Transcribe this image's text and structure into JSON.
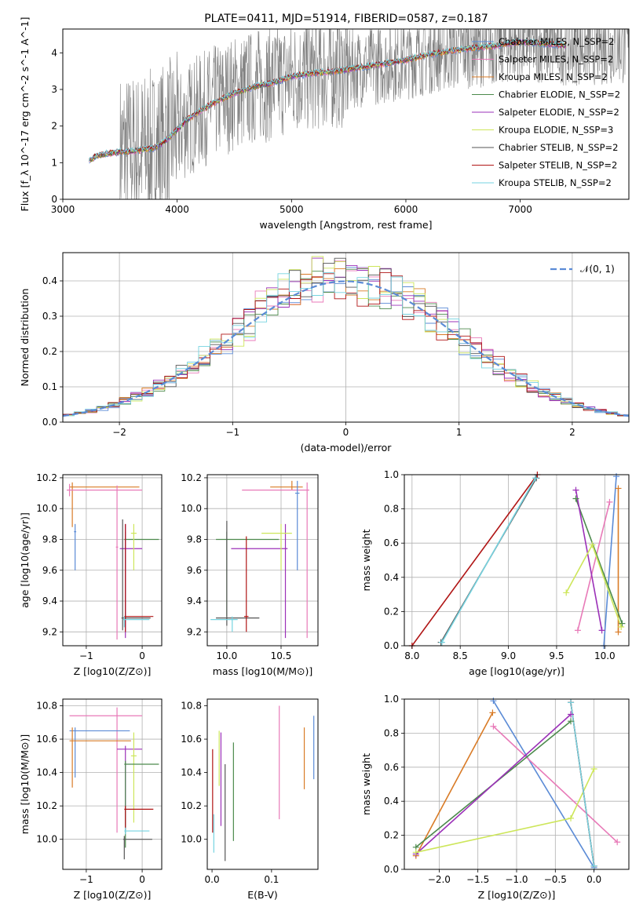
{
  "figure": {
    "title": "PLATE=0411, MJD=51914, FIBERID=0587, z=0.187"
  },
  "colors": {
    "chabrier_miles": "#5b8bd6",
    "salpeter_miles": "#e87ab8",
    "kroupa_miles": "#d97b26",
    "chabrier_elodie": "#4c8a4c",
    "salpeter_elodie": "#9b30b8",
    "kroupa_elodie": "#cde65a",
    "chabrier_stelib": "#555555",
    "salpeter_stelib": "#b01515",
    "kroupa_stelib": "#76d3e0",
    "data_spectrum": "#808080",
    "normal_curve": "#5b8bd6"
  },
  "chart_data": [
    {
      "id": "spectrum",
      "type": "line",
      "xlabel": "wavelength [Angstrom, rest frame]",
      "ylabel": "Flux [f_λ 10^-17 erg cm^-2 s^-1 A^-1]",
      "xlim": [
        3000,
        7950
      ],
      "ylim": [
        0,
        4.65
      ],
      "xticks": [
        "3000",
        "4000",
        "5000",
        "6000",
        "7000"
      ],
      "yticks": [
        "0",
        "1",
        "2",
        "3",
        "4"
      ],
      "grid": false,
      "legend_placement": "top-right",
      "model_range": [
        3230,
        7400
      ],
      "data_range": [
        3500,
        7950
      ],
      "model_points": [
        [
          3230,
          1.05
        ],
        [
          3300,
          1.2
        ],
        [
          3400,
          1.25
        ],
        [
          3500,
          1.3
        ],
        [
          3600,
          1.3
        ],
        [
          3700,
          1.35
        ],
        [
          3800,
          1.4
        ],
        [
          3900,
          1.6
        ],
        [
          4000,
          1.9
        ],
        [
          4100,
          2.2
        ],
        [
          4200,
          2.4
        ],
        [
          4300,
          2.6
        ],
        [
          4400,
          2.75
        ],
        [
          4500,
          2.9
        ],
        [
          4600,
          3.0
        ],
        [
          4700,
          3.1
        ],
        [
          4800,
          3.15
        ],
        [
          4900,
          3.25
        ],
        [
          5000,
          3.35
        ],
        [
          5200,
          3.45
        ],
        [
          5400,
          3.5
        ],
        [
          5600,
          3.6
        ],
        [
          5800,
          3.7
        ],
        [
          6000,
          3.8
        ],
        [
          6200,
          3.95
        ],
        [
          6500,
          4.1
        ],
        [
          6800,
          4.2
        ],
        [
          7000,
          4.3
        ],
        [
          7200,
          4.25
        ],
        [
          7400,
          4.2
        ]
      ],
      "legend": [
        {
          "label": "Chabrier MILES, N_SSP=2",
          "color_key": "chabrier_miles"
        },
        {
          "label": "Salpeter MILES, N_SSP=2",
          "color_key": "salpeter_miles"
        },
        {
          "label": "Kroupa MILES, N_SSP=2",
          "color_key": "kroupa_miles"
        },
        {
          "label": "Chabrier ELODIE, N_SSP=2",
          "color_key": "chabrier_elodie"
        },
        {
          "label": "Salpeter ELODIE, N_SSP=2",
          "color_key": "salpeter_elodie"
        },
        {
          "label": "Kroupa ELODIE, N_SSP=3",
          "color_key": "kroupa_elodie"
        },
        {
          "label": "Chabrier STELIB, N_SSP=2",
          "color_key": "chabrier_stelib"
        },
        {
          "label": "Salpeter STELIB, N_SSP=2",
          "color_key": "salpeter_stelib"
        },
        {
          "label": "Kroupa STELIB, N_SSP=2",
          "color_key": "kroupa_stelib"
        }
      ]
    },
    {
      "id": "residuals",
      "type": "line",
      "xlabel": "(data-model)/error",
      "ylabel": "Normed distribution",
      "xlim": [
        -2.5,
        2.5
      ],
      "ylim": [
        0,
        0.48
      ],
      "xticks": [
        -2,
        -1,
        0,
        1,
        2
      ],
      "xtick_labels": [
        "−2",
        "−1",
        "0",
        "1",
        "2"
      ],
      "yticks": [
        0.0,
        0.1,
        0.2,
        0.3,
        0.4
      ],
      "ytick_labels": [
        "0.0",
        "0.1",
        "0.2",
        "0.3",
        "0.4"
      ],
      "grid": true,
      "legend_placement": "top-right",
      "legend": [
        {
          "label": "𝒩(0, 1)",
          "color_key": "normal_curve",
          "style": "dashed"
        }
      ],
      "bin_width": 0.1
    },
    {
      "id": "age_vs_Z",
      "type": "scatter",
      "xlabel": "Z [log10(Z/Z⊙)]",
      "ylabel": "age  [log10(age/yr)]",
      "xlim": [
        -1.42,
        0.35
      ],
      "ylim": [
        9.11,
        10.22
      ],
      "xticks": [
        -1,
        0
      ],
      "xtick_labels": [
        "−1",
        "0"
      ],
      "yticks": [
        9.2,
        9.4,
        9.6,
        9.8,
        10.0,
        10.2
      ],
      "ytick_labels": [
        "9.2",
        "9.4",
        "9.6",
        "9.8",
        "10.0",
        "10.2"
      ],
      "grid": true,
      "points": [
        {
          "color_key": "kroupa_miles",
          "x": -1.25,
          "y": 10.14,
          "xerr": [
            0.05,
            1.2
          ],
          "yerr": [
            0.26,
            0.03
          ]
        },
        {
          "color_key": "salpeter_miles",
          "x": -1.3,
          "y": 10.12,
          "xerr": [
            0.05,
            1.3
          ],
          "yerr": [
            0.04,
            0.04
          ]
        },
        {
          "color_key": "chabrier_miles",
          "x": -1.2,
          "y": 9.85,
          "xerr": [
            0.02,
            0.02
          ],
          "yerr": [
            0.25,
            0.05
          ]
        },
        {
          "color_key": "salpeter_miles",
          "x": -0.45,
          "y": 9.75,
          "xerr": [
            0.02,
            0.02
          ],
          "yerr": [
            0.6,
            0.4
          ]
        },
        {
          "color_key": "chabrier_elodie",
          "x": -0.3,
          "y": 9.8,
          "xerr": [
            0.02,
            0.6
          ],
          "yerr": [
            0.5,
            0.05
          ]
        },
        {
          "color_key": "salpeter_elodie",
          "x": -0.3,
          "y": 9.74,
          "xerr": [
            0.1,
            0.3
          ],
          "yerr": [
            0.58,
            0.16
          ]
        },
        {
          "color_key": "kroupa_elodie",
          "x": -0.15,
          "y": 9.84,
          "xerr": [
            0.05,
            0.05
          ],
          "yerr": [
            0.24,
            0.06
          ]
        },
        {
          "color_key": "chabrier_stelib",
          "x": -0.35,
          "y": 9.29,
          "xerr": [
            0.02,
            0.5
          ],
          "yerr": [
            0.08,
            0.64
          ]
        },
        {
          "color_key": "salpeter_stelib",
          "x": -0.3,
          "y": 9.3,
          "xerr": [
            0.02,
            0.5
          ],
          "yerr": [
            0.1,
            0.6
          ]
        },
        {
          "color_key": "kroupa_stelib",
          "x": -0.32,
          "y": 9.28,
          "xerr": [
            0.02,
            0.45
          ],
          "yerr": [
            0.05,
            0.02
          ]
        }
      ]
    },
    {
      "id": "age_vs_mass",
      "type": "scatter",
      "xlabel": "mass [log10(M/M⊙)]",
      "ylabel": "",
      "xlim": [
        9.82,
        10.84
      ],
      "ylim": [
        9.11,
        10.22
      ],
      "xticks": [
        10.0,
        10.5
      ],
      "xtick_labels": [
        "10.0",
        "10.5"
      ],
      "yticks": [
        9.2,
        9.4,
        9.6,
        9.8,
        10.0,
        10.2
      ],
      "ytick_labels": [
        "9.2",
        "9.4",
        "9.6",
        "9.8",
        "10.0",
        "10.2"
      ],
      "grid": true,
      "points": [
        {
          "color_key": "kroupa_miles",
          "x": 10.6,
          "y": 10.14,
          "xerr": [
            0.2,
            0.1
          ],
          "yerr": [
            0.02,
            0.04
          ]
        },
        {
          "color_key": "salpeter_miles",
          "x": 10.74,
          "y": 10.12,
          "xerr": [
            0.6,
            0.02
          ],
          "yerr": [
            0.96,
            0.05
          ]
        },
        {
          "color_key": "chabrier_miles",
          "x": 10.65,
          "y": 10.1,
          "xerr": [
            0.02,
            0.02
          ],
          "yerr": [
            0.5,
            0.08
          ]
        },
        {
          "color_key": "chabrier_elodie",
          "x": 10.0,
          "y": 9.8,
          "xerr": [
            0.1,
            0.48
          ],
          "yerr": [
            0.5,
            0.05
          ]
        },
        {
          "color_key": "salpeter_elodie",
          "x": 10.54,
          "y": 9.74,
          "xerr": [
            0.5,
            0.02
          ],
          "yerr": [
            0.58,
            0.16
          ]
        },
        {
          "color_key": "kroupa_elodie",
          "x": 10.5,
          "y": 9.84,
          "xerr": [
            0.18,
            0.1
          ],
          "yerr": [
            0.24,
            0.06
          ]
        },
        {
          "color_key": "chabrier_stelib",
          "x": 10.0,
          "y": 9.29,
          "xerr": [
            0.1,
            0.3
          ],
          "yerr": [
            0.05,
            0.63
          ]
        },
        {
          "color_key": "salpeter_stelib",
          "x": 10.18,
          "y": 9.3,
          "xerr": [
            0.02,
            0.02
          ],
          "yerr": [
            0.1,
            0.52
          ]
        },
        {
          "color_key": "kroupa_stelib",
          "x": 10.05,
          "y": 9.28,
          "xerr": [
            0.2,
            0.05
          ],
          "yerr": [
            0.08,
            0.02
          ]
        }
      ]
    },
    {
      "id": "mass_weight_vs_age",
      "type": "line",
      "xlabel": "age  [log10(age/yr)]",
      "ylabel": "mass weight",
      "xlim": [
        7.92,
        10.25
      ],
      "ylim": [
        0,
        1
      ],
      "xticks": [
        8.0,
        8.5,
        9.0,
        9.5,
        10.0
      ],
      "xtick_labels": [
        "8.0",
        "8.5",
        "9.0",
        "9.5",
        "10.0"
      ],
      "yticks": [
        0,
        0.2,
        0.4,
        0.6,
        0.8,
        1.0
      ],
      "ytick_labels": [
        "0.0",
        "0.2",
        "0.4",
        "0.6",
        "0.8",
        "1.0"
      ],
      "grid": true,
      "series": [
        {
          "color_key": "chabrier_miles",
          "x": [
            9.99,
            10.12
          ],
          "y": [
            0.0,
            0.99
          ]
        },
        {
          "color_key": "salpeter_miles",
          "x": [
            9.72,
            10.05
          ],
          "y": [
            0.09,
            0.84
          ]
        },
        {
          "color_key": "kroupa_miles",
          "x": [
            10.14,
            10.14
          ],
          "y": [
            0.08,
            0.92
          ]
        },
        {
          "color_key": "chabrier_elodie",
          "x": [
            9.7,
            10.18
          ],
          "y": [
            0.86,
            0.13
          ]
        },
        {
          "color_key": "salpeter_elodie",
          "x": [
            9.7,
            9.97
          ],
          "y": [
            0.91,
            0.09
          ]
        },
        {
          "color_key": "kroupa_elodie",
          "x": [
            9.6,
            9.87,
            10.17
          ],
          "y": [
            0.31,
            0.59,
            0.11
          ]
        },
        {
          "color_key": "chabrier_stelib",
          "x": [
            8.3,
            9.29
          ],
          "y": [
            0.02,
            0.98
          ]
        },
        {
          "color_key": "salpeter_stelib",
          "x": [
            8.0,
            9.3
          ],
          "y": [
            0.0,
            1.0
          ]
        },
        {
          "color_key": "kroupa_stelib",
          "x": [
            8.31,
            9.28
          ],
          "y": [
            0.02,
            0.98
          ]
        }
      ]
    },
    {
      "id": "mass_vs_Z",
      "type": "scatter",
      "xlabel": "Z [log10(Z/Z⊙)]",
      "ylabel": "mass [log10(M/M⊙)]",
      "xlim": [
        -1.42,
        0.35
      ],
      "ylim": [
        9.82,
        10.84
      ],
      "xticks": [
        -1,
        0
      ],
      "xtick_labels": [
        "−1",
        "0"
      ],
      "yticks": [
        10.0,
        10.2,
        10.4,
        10.6,
        10.8
      ],
      "ytick_labels": [
        "10.0",
        "10.2",
        "10.4",
        "10.6",
        "10.8"
      ],
      "grid": true,
      "points": [
        {
          "color_key": "salpeter_miles",
          "x": -0.45,
          "y": 10.74,
          "xerr": [
            0.85,
            0.45
          ],
          "yerr": [
            0.7,
            0.05
          ]
        },
        {
          "color_key": "chabrier_miles",
          "x": -1.2,
          "y": 10.65,
          "xerr": [
            0.1,
            0.98
          ],
          "yerr": [
            0.28,
            0.02
          ]
        },
        {
          "color_key": "kroupa_miles",
          "x": -1.25,
          "y": 10.59,
          "xerr": [
            0.05,
            1.05
          ],
          "yerr": [
            0.28,
            0.08
          ]
        },
        {
          "color_key": "salpeter_elodie",
          "x": -0.3,
          "y": 10.54,
          "xerr": [
            0.15,
            0.3
          ],
          "yerr": [
            0.5,
            0.02
          ]
        },
        {
          "color_key": "kroupa_elodie",
          "x": -0.15,
          "y": 10.5,
          "xerr": [
            0.05,
            0.05
          ],
          "yerr": [
            0.4,
            0.14
          ]
        },
        {
          "color_key": "chabrier_elodie",
          "x": -0.3,
          "y": 10.45,
          "xerr": [
            0.02,
            0.6
          ],
          "yerr": [
            0.5,
            0.02
          ]
        },
        {
          "color_key": "salpeter_stelib",
          "x": -0.3,
          "y": 10.18,
          "xerr": [
            0.02,
            0.5
          ],
          "yerr": [
            0.12,
            0.02
          ]
        },
        {
          "color_key": "kroupa_stelib",
          "x": -0.3,
          "y": 10.05,
          "xerr": [
            0.02,
            0.43
          ],
          "yerr": [
            0.02,
            0.02
          ]
        },
        {
          "color_key": "chabrier_stelib",
          "x": -0.32,
          "y": 10.0,
          "xerr": [
            0.02,
            0.5
          ],
          "yerr": [
            0.12,
            0.02
          ]
        }
      ]
    },
    {
      "id": "mass_vs_ebv",
      "type": "scatter",
      "xlabel": "E(B-V)",
      "ylabel": "",
      "xlim": [
        -0.008,
        0.178
      ],
      "ylim": [
        9.82,
        10.84
      ],
      "xticks": [
        0.0,
        0.1
      ],
      "xtick_labels": [
        "0.0",
        "0.1"
      ],
      "yticks": [
        10.0,
        10.2,
        10.4,
        10.6,
        10.8
      ],
      "ytick_labels": [
        "10.0",
        "10.2",
        "10.4",
        "10.6",
        "10.8"
      ],
      "grid": false,
      "bars": [
        {
          "color_key": "salpeter_stelib",
          "x": 0.001,
          "y0": 10.04,
          "y1": 10.54
        },
        {
          "color_key": "kroupa_stelib",
          "x": 0.003,
          "y0": 9.92,
          "y1": 10.15
        },
        {
          "color_key": "kroupa_elodie",
          "x": 0.012,
          "y0": 10.32,
          "y1": 10.65
        },
        {
          "color_key": "salpeter_elodie",
          "x": 0.015,
          "y0": 10.08,
          "y1": 10.64
        },
        {
          "color_key": "chabrier_stelib",
          "x": 0.022,
          "y0": 9.87,
          "y1": 10.45
        },
        {
          "color_key": "chabrier_elodie",
          "x": 0.036,
          "y0": 9.99,
          "y1": 10.58
        },
        {
          "color_key": "salpeter_miles",
          "x": 0.113,
          "y0": 10.12,
          "y1": 10.8
        },
        {
          "color_key": "kroupa_miles",
          "x": 0.155,
          "y0": 10.3,
          "y1": 10.67
        },
        {
          "color_key": "chabrier_miles",
          "x": 0.171,
          "y0": 10.36,
          "y1": 10.74
        }
      ]
    },
    {
      "id": "mass_weight_vs_Z",
      "type": "line",
      "xlabel": "Z [log10(Z/Z⊙)]",
      "ylabel": "mass weight",
      "xlim": [
        -2.45,
        0.45
      ],
      "ylim": [
        0,
        1
      ],
      "xticks": [
        -2.0,
        -1.5,
        -1.0,
        -0.5,
        0.0
      ],
      "xtick_labels": [
        "−2.0",
        "−1.5",
        "−1.0",
        "−0.5",
        "0.0"
      ],
      "yticks": [
        0,
        0.2,
        0.4,
        0.6,
        0.8,
        1.0
      ],
      "ytick_labels": [
        "0.0",
        "0.2",
        "0.4",
        "0.6",
        "0.8",
        "1.0"
      ],
      "grid": true,
      "series": [
        {
          "color_key": "chabrier_miles",
          "x": [
            -1.3,
            0.0
          ],
          "y": [
            0.99,
            0.01
          ]
        },
        {
          "color_key": "salpeter_miles",
          "x": [
            -1.3,
            0.3
          ],
          "y": [
            0.84,
            0.16
          ]
        },
        {
          "color_key": "kroupa_miles",
          "x": [
            -2.3,
            -1.31
          ],
          "y": [
            0.08,
            0.92
          ]
        },
        {
          "color_key": "chabrier_elodie",
          "x": [
            -2.3,
            -0.3
          ],
          "y": [
            0.13,
            0.87
          ]
        },
        {
          "color_key": "salpeter_elodie",
          "x": [
            -2.3,
            -0.3
          ],
          "y": [
            0.09,
            0.91
          ]
        },
        {
          "color_key": "kroupa_elodie",
          "x": [
            -2.3,
            -0.3,
            0.0
          ],
          "y": [
            0.1,
            0.3,
            0.59
          ]
        },
        {
          "color_key": "chabrier_stelib",
          "x": [
            -0.3,
            0.0
          ],
          "y": [
            0.98,
            0.02
          ]
        },
        {
          "color_key": "salpeter_stelib",
          "x": [
            -0.3,
            0.0
          ],
          "y": [
            0.98,
            0.02
          ]
        },
        {
          "color_key": "kroupa_stelib",
          "x": [
            -0.3,
            0.0
          ],
          "y": [
            0.98,
            0.02
          ]
        }
      ]
    }
  ]
}
